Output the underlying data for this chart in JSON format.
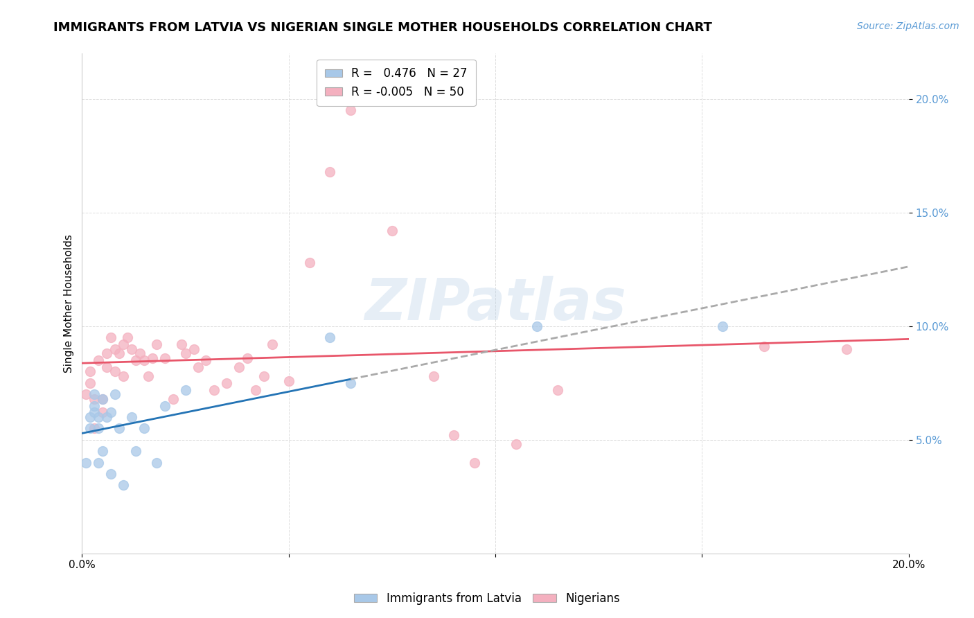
{
  "title": "IMMIGRANTS FROM LATVIA VS NIGERIAN SINGLE MOTHER HOUSEHOLDS CORRELATION CHART",
  "source": "Source: ZipAtlas.com",
  "ylabel": "Single Mother Households",
  "xlim": [
    0.0,
    0.2
  ],
  "ylim": [
    0.0,
    0.22
  ],
  "latvia_R": 0.476,
  "latvia_N": 27,
  "nigerian_R": -0.005,
  "nigerian_N": 50,
  "latvia_color": "#a8c8e8",
  "nigerian_color": "#f4b0bf",
  "latvia_line_color": "#2474b5",
  "nigerian_line_color": "#e8566a",
  "dashed_color": "#aaaaaa",
  "watermark_text": "ZIPatlas",
  "latvia_points_x": [
    0.001,
    0.002,
    0.002,
    0.003,
    0.003,
    0.003,
    0.004,
    0.004,
    0.004,
    0.005,
    0.005,
    0.006,
    0.007,
    0.007,
    0.008,
    0.009,
    0.01,
    0.012,
    0.013,
    0.015,
    0.018,
    0.02,
    0.025,
    0.06,
    0.065,
    0.11,
    0.155
  ],
  "latvia_points_y": [
    0.04,
    0.055,
    0.06,
    0.062,
    0.065,
    0.07,
    0.04,
    0.055,
    0.06,
    0.045,
    0.068,
    0.06,
    0.035,
    0.062,
    0.07,
    0.055,
    0.03,
    0.06,
    0.045,
    0.055,
    0.04,
    0.065,
    0.072,
    0.095,
    0.075,
    0.1,
    0.1
  ],
  "nigerian_points_x": [
    0.001,
    0.002,
    0.002,
    0.003,
    0.003,
    0.004,
    0.005,
    0.005,
    0.006,
    0.006,
    0.007,
    0.008,
    0.008,
    0.009,
    0.01,
    0.01,
    0.011,
    0.012,
    0.013,
    0.014,
    0.015,
    0.016,
    0.017,
    0.018,
    0.02,
    0.022,
    0.024,
    0.025,
    0.027,
    0.028,
    0.03,
    0.032,
    0.035,
    0.038,
    0.04,
    0.042,
    0.044,
    0.046,
    0.05,
    0.055,
    0.06,
    0.065,
    0.075,
    0.085,
    0.09,
    0.095,
    0.105,
    0.115,
    0.165,
    0.185
  ],
  "nigerian_points_y": [
    0.07,
    0.075,
    0.08,
    0.055,
    0.068,
    0.085,
    0.062,
    0.068,
    0.088,
    0.082,
    0.095,
    0.08,
    0.09,
    0.088,
    0.092,
    0.078,
    0.095,
    0.09,
    0.085,
    0.088,
    0.085,
    0.078,
    0.086,
    0.092,
    0.086,
    0.068,
    0.092,
    0.088,
    0.09,
    0.082,
    0.085,
    0.072,
    0.075,
    0.082,
    0.086,
    0.072,
    0.078,
    0.092,
    0.076,
    0.128,
    0.168,
    0.195,
    0.142,
    0.078,
    0.052,
    0.04,
    0.048,
    0.072,
    0.091,
    0.09
  ],
  "yticks": [
    0.05,
    0.1,
    0.15,
    0.2
  ],
  "ytick_labels": [
    "5.0%",
    "10.0%",
    "15.0%",
    "20.0%"
  ],
  "xticks": [
    0.0,
    0.05,
    0.1,
    0.15,
    0.2
  ],
  "xtick_labels": [
    "0.0%",
    "",
    "",
    "",
    "20.0%"
  ],
  "grid_color": "#dddddd",
  "spine_color": "#cccccc",
  "title_fontsize": 13,
  "source_fontsize": 10,
  "tick_fontsize": 11,
  "ylabel_fontsize": 11,
  "legend_fontsize": 12,
  "watermark_fontsize": 60,
  "scatter_size": 100,
  "scatter_alpha": 0.75,
  "line_width": 2.0
}
